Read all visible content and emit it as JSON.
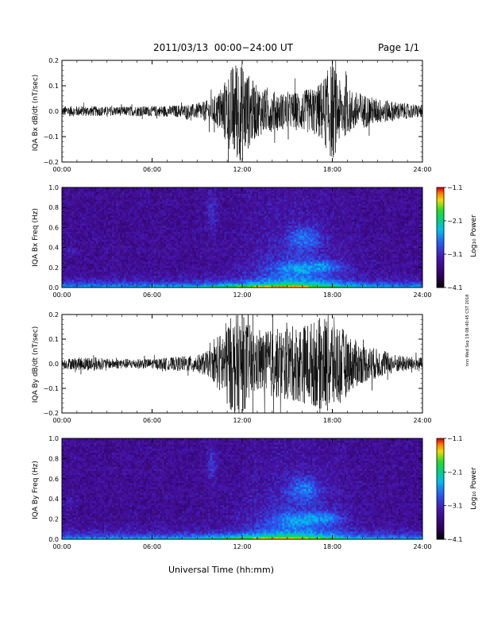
{
  "header": {
    "date_range": "2011/03/13  00:00−24:00 UT",
    "page": "Page 1/1"
  },
  "x_axis_label": "Universal Time (hh:mm)",
  "stamp": "nnn Wed Sep 19 08:40:45 CST 2018",
  "chart_data": [
    {
      "id": "panel-bx-dbdt",
      "type": "line",
      "ylabel": "IQA Bx dB/dt (nT/sec)",
      "x_ticks": [
        "00:00",
        "06:00",
        "12:00",
        "18:00",
        "24:00"
      ],
      "x_range_hours": [
        0,
        24
      ],
      "ylim": [
        -0.2,
        0.2
      ],
      "y_ticks": [
        "0.2",
        "0.1",
        "0.0",
        "−0.1",
        "−0.2"
      ],
      "amplitude_envelope": {
        "hours": [
          0,
          1,
          2,
          3,
          4,
          5,
          6,
          7,
          8,
          9,
          10,
          10.5,
          11,
          11.5,
          12,
          12.5,
          13,
          14,
          15,
          16,
          17,
          17.5,
          18,
          18.5,
          19,
          20,
          21,
          22,
          23,
          24
        ],
        "amplitude": [
          0.02,
          0.02,
          0.02,
          0.018,
          0.018,
          0.02,
          0.02,
          0.022,
          0.025,
          0.03,
          0.05,
          0.08,
          0.14,
          0.2,
          0.2,
          0.14,
          0.1,
          0.08,
          0.07,
          0.08,
          0.1,
          0.14,
          0.2,
          0.12,
          0.09,
          0.07,
          0.05,
          0.04,
          0.03,
          0.025
        ]
      }
    },
    {
      "id": "panel-bx-freq",
      "type": "heatmap",
      "ylabel": "IQA Bx Freq (Hz)",
      "x_ticks": [
        "00:00",
        "06:00",
        "12:00",
        "18:00",
        "24:00"
      ],
      "x_range_hours": [
        0,
        24
      ],
      "ylim": [
        0,
        1.0
      ],
      "y_ticks": [
        "1.0",
        "0.8",
        "0.6",
        "0.4",
        "0.2",
        "0.0"
      ],
      "colorbar": {
        "label": "Log₁₀ Power",
        "ticks": [
          "−1.1",
          "−2.1",
          "−3.1",
          "−4.1"
        ],
        "range": [
          -4.1,
          -1.1
        ]
      }
    },
    {
      "id": "panel-by-dbdt",
      "type": "line",
      "ylabel": "IQA By dB/dt (nT/sec)",
      "x_ticks": [
        "00:00",
        "06:00",
        "12:00",
        "18:00",
        "24:00"
      ],
      "x_range_hours": [
        0,
        24
      ],
      "ylim": [
        -0.2,
        0.2
      ],
      "y_ticks": [
        "0.2",
        "0.1",
        "0.0",
        "−0.1",
        "−0.2"
      ],
      "amplitude_envelope": {
        "hours": [
          0,
          1,
          2,
          3,
          4,
          5,
          6,
          7,
          8,
          9,
          10,
          10.5,
          11,
          11.5,
          12,
          12.5,
          13,
          14,
          15,
          16,
          17,
          17.5,
          18,
          18.5,
          19,
          20,
          21,
          22,
          23,
          24
        ],
        "amplitude": [
          0.02,
          0.025,
          0.03,
          0.02,
          0.02,
          0.02,
          0.02,
          0.025,
          0.03,
          0.035,
          0.06,
          0.12,
          0.18,
          0.2,
          0.2,
          0.16,
          0.12,
          0.14,
          0.15,
          0.16,
          0.18,
          0.2,
          0.2,
          0.16,
          0.12,
          0.08,
          0.06,
          0.04,
          0.03,
          0.025
        ]
      }
    },
    {
      "id": "panel-by-freq",
      "type": "heatmap",
      "ylabel": "IQA By Freq (Hz)",
      "x_ticks": [
        "00:00",
        "06:00",
        "12:00",
        "18:00",
        "24:00"
      ],
      "x_range_hours": [
        0,
        24
      ],
      "ylim": [
        0,
        1.0
      ],
      "y_ticks": [
        "1.0",
        "0.8",
        "0.6",
        "0.4",
        "0.2",
        "0.0"
      ],
      "colorbar": {
        "label": "Log₁₀ Power",
        "ticks": [
          "−1.1",
          "−2.1",
          "−3.1",
          "−4.1"
        ],
        "range": [
          -4.1,
          -1.1
        ]
      }
    }
  ]
}
